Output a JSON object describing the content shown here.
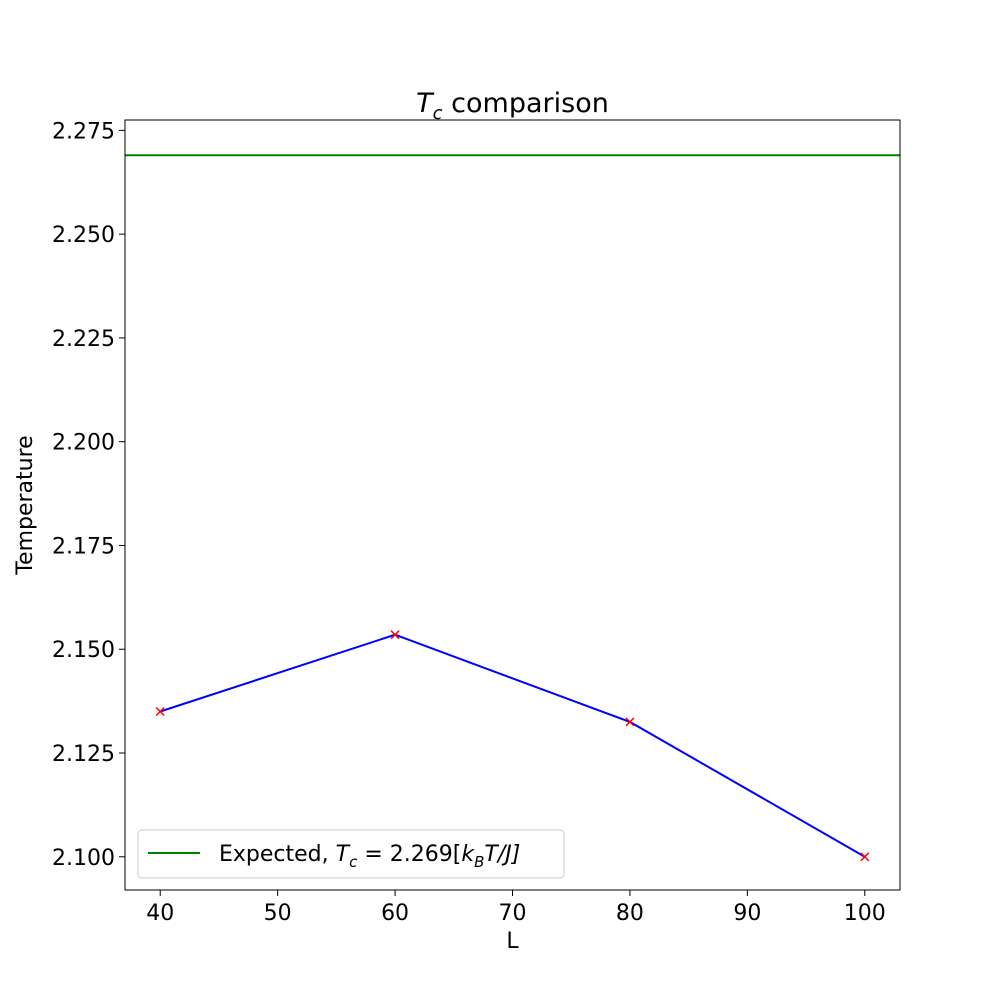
{
  "chart_data": {
    "type": "line",
    "title": {
      "symbol_main": "T",
      "symbol_sub": "c",
      "text": "comparison"
    },
    "xlabel": "L",
    "ylabel": "Temperature",
    "xlim": [
      37,
      103
    ],
    "ylim": [
      2.092,
      2.2775
    ],
    "x_ticks": [
      40,
      50,
      60,
      70,
      80,
      90,
      100
    ],
    "x_tick_labels": [
      "40",
      "50",
      "60",
      "70",
      "80",
      "90",
      "100"
    ],
    "y_ticks": [
      2.1,
      2.125,
      2.15,
      2.175,
      2.2,
      2.225,
      2.25,
      2.275
    ],
    "y_tick_labels": [
      "2.100",
      "2.125",
      "2.150",
      "2.175",
      "2.200",
      "2.225",
      "2.250",
      "2.275"
    ],
    "grid": false,
    "legend_position": "lower-left",
    "series": [
      {
        "x": [
          40,
          60,
          80,
          100
        ],
        "values": [
          2.135,
          2.1535,
          2.1325,
          2.1
        ],
        "line_color": "#0000ff",
        "marker_color": "#ff0000",
        "marker": "x"
      }
    ],
    "reference_lines": [
      {
        "y": 2.269,
        "color": "#008000",
        "legend": {
          "prefix": "Expected, ",
          "symbol_main": "T",
          "symbol_sub": "c",
          "eq": " = 2.269[",
          "k_main": "k",
          "k_sub": "B",
          "tail": "T/J]"
        }
      }
    ]
  }
}
